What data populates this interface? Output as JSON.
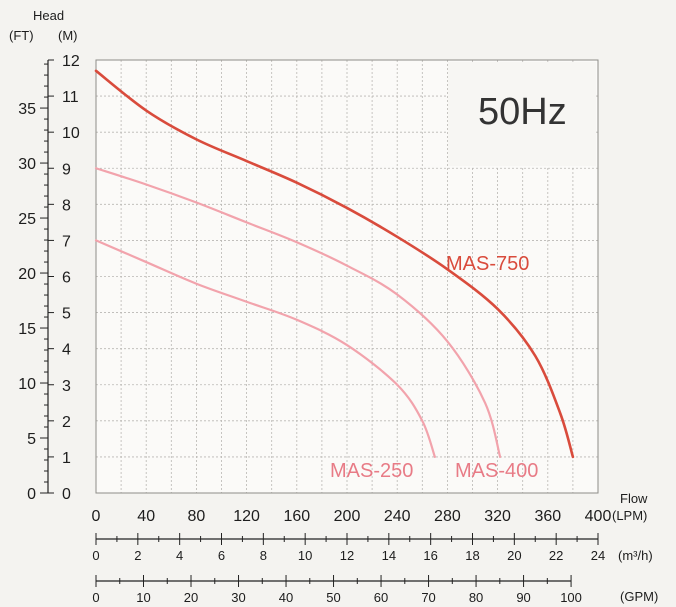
{
  "chart_data": {
    "type": "line",
    "frequency_label": "50Hz",
    "y_title": "Head",
    "y_left_unit": "(FT)",
    "y_right_unit": "(M)",
    "x_title": "Flow",
    "x_unit_lpm": "(LPM)",
    "x_unit_m3h": "(m³/h)",
    "x_unit_gpm": "(GPM)",
    "xlim": [
      0,
      400
    ],
    "ylim": [
      0,
      12
    ],
    "grid": true,
    "x_ticks_lpm": [
      "0",
      "40",
      "80",
      "120",
      "160",
      "200",
      "240",
      "280",
      "320",
      "360",
      "400"
    ],
    "y_ticks_m": [
      "0",
      "1",
      "2",
      "3",
      "4",
      "5",
      "6",
      "7",
      "8",
      "9",
      "10",
      "11",
      "12"
    ],
    "y_ticks_ft": [
      "0",
      "5",
      "10",
      "15",
      "20",
      "25",
      "30",
      "35"
    ],
    "x_ticks_m3h": [
      "0",
      "2",
      "4",
      "6",
      "8",
      "10",
      "12",
      "14",
      "16",
      "18",
      "20",
      "22",
      "24"
    ],
    "x_ticks_gpm": [
      "0",
      "10",
      "20",
      "30",
      "40",
      "50",
      "60",
      "70",
      "80",
      "90",
      "100"
    ],
    "series": [
      {
        "name": "MAS-250",
        "color": "#f2a3ac",
        "points": [
          [
            0,
            7.0
          ],
          [
            40,
            6.4
          ],
          [
            80,
            5.8
          ],
          [
            120,
            5.3
          ],
          [
            160,
            4.8
          ],
          [
            200,
            4.1
          ],
          [
            240,
            3.0
          ],
          [
            260,
            2.0
          ],
          [
            270,
            1.0
          ]
        ]
      },
      {
        "name": "MAS-400",
        "color": "#f2a3ac",
        "points": [
          [
            0,
            9.0
          ],
          [
            40,
            8.55
          ],
          [
            80,
            8.05
          ],
          [
            120,
            7.5
          ],
          [
            160,
            6.95
          ],
          [
            200,
            6.3
          ],
          [
            240,
            5.5
          ],
          [
            280,
            4.2
          ],
          [
            310,
            2.5
          ],
          [
            322,
            1.0
          ]
        ]
      },
      {
        "name": "MAS-750",
        "color": "#d94b3c",
        "points": [
          [
            0,
            11.7
          ],
          [
            40,
            10.6
          ],
          [
            80,
            9.8
          ],
          [
            120,
            9.2
          ],
          [
            160,
            8.6
          ],
          [
            200,
            7.9
          ],
          [
            240,
            7.1
          ],
          [
            280,
            6.2
          ],
          [
            320,
            5.1
          ],
          [
            350,
            3.8
          ],
          [
            370,
            2.2
          ],
          [
            380,
            1.0
          ]
        ]
      }
    ]
  }
}
